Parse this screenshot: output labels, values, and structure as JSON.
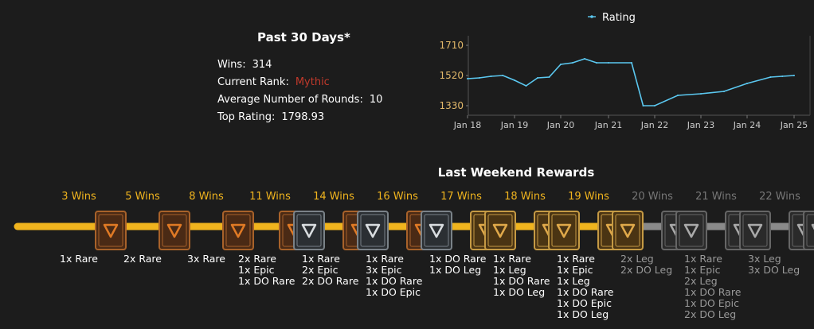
{
  "stats": {
    "title": "Past 30 Days*",
    "rows": [
      {
        "label": "Wins:",
        "value": "314"
      },
      {
        "label": "Current Rank:",
        "value": "Mythic"
      },
      {
        "label": "Average Number of Rounds:",
        "value": "10"
      },
      {
        "label": "Top Rating:",
        "value": "1798.93"
      }
    ],
    "rank_color": "#c0392b"
  },
  "chart_data": {
    "type": "line",
    "series": [
      {
        "name": "Rating",
        "color": "#5bc8f0",
        "x": [
          "Jan 18",
          "Jan 18 06:00",
          "Jan 18 12:00",
          "Jan 18 18:00",
          "Jan 19",
          "Jan 19 06:00",
          "Jan 19 12:00",
          "Jan 19 18:00",
          "Jan 20",
          "Jan 20 06:00",
          "Jan 20 12:00",
          "Jan 20 18:00",
          "Jan 21",
          "Jan 21 12:00",
          "Jan 21 18:00",
          "Jan 22",
          "Jan 22 12:00",
          "Jan 23",
          "Jan 23 12:00",
          "Jan 24",
          "Jan 24 12:00",
          "Jan 24 18:00",
          "Jan 25"
        ],
        "values": [
          1500,
          1505,
          1515,
          1520,
          1490,
          1455,
          1505,
          1510,
          1590,
          1600,
          1625,
          1600,
          1600,
          1600,
          1330,
          1330,
          1395,
          1405,
          1420,
          1470,
          1510,
          1515,
          1520
        ]
      }
    ],
    "legend": "top",
    "legend_icon": "line-marker",
    "yticks": [
      1330,
      1520,
      1710
    ],
    "xticks": [
      "Jan 18",
      "Jan 19",
      "Jan 20",
      "Jan 21",
      "Jan 22",
      "Jan 23",
      "Jan 24",
      "Jan 25"
    ],
    "ylim": [
      1270,
      1770
    ],
    "grid": false
  },
  "rewards": {
    "title": "Last Weekend Rewards",
    "achieved_color": "#f0b41e",
    "locked_color": "#777777",
    "tiers": [
      {
        "wins": "3 Wins",
        "achieved": true,
        "chest": "bronze",
        "items": [
          "1x Rare"
        ]
      },
      {
        "wins": "5 Wins",
        "achieved": true,
        "chest": "bronze",
        "items": [
          "2x Rare"
        ]
      },
      {
        "wins": "8 Wins",
        "achieved": true,
        "chest": "bronze",
        "items": [
          "3x Rare"
        ]
      },
      {
        "wins": "11 Wins",
        "achieved": true,
        "chest": "silver",
        "items": [
          "2x Rare",
          "1x Epic",
          "1x DO Rare"
        ]
      },
      {
        "wins": "14 Wins",
        "achieved": true,
        "chest": "silver",
        "items": [
          "1x Rare",
          "2x Epic",
          "2x DO Rare"
        ]
      },
      {
        "wins": "16 Wins",
        "achieved": true,
        "chest": "silver",
        "items": [
          "1x Rare",
          "3x Epic",
          "1x DO Rare",
          "1x DO Epic"
        ]
      },
      {
        "wins": "17 Wins",
        "achieved": true,
        "chest": "gold",
        "items": [
          "1x DO Rare",
          "1x DO Leg"
        ]
      },
      {
        "wins": "18 Wins",
        "achieved": true,
        "chest": "gold",
        "items": [
          "1x Rare",
          "1x Leg",
          "1x DO Rare",
          "1x DO Leg"
        ]
      },
      {
        "wins": "19 Wins",
        "achieved": true,
        "chest": "gold",
        "items": [
          "1x Rare",
          "1x Epic",
          "1x Leg",
          "1x DO Rare",
          "1x DO Epic",
          "1x DO Leg"
        ]
      },
      {
        "wins": "20 Wins",
        "achieved": false,
        "chest": "locked",
        "items": [
          "2x Leg",
          "2x DO Leg"
        ]
      },
      {
        "wins": "21 Wins",
        "achieved": false,
        "chest": "locked",
        "items": [
          "1x Rare",
          "1x Epic",
          "2x Leg",
          "1x DO Rare",
          "1x DO Epic",
          "2x DO Leg"
        ]
      },
      {
        "wins": "22 Wins",
        "achieved": false,
        "chest": "locked",
        "items": [
          "3x Leg",
          "3x DO Leg"
        ]
      }
    ]
  }
}
